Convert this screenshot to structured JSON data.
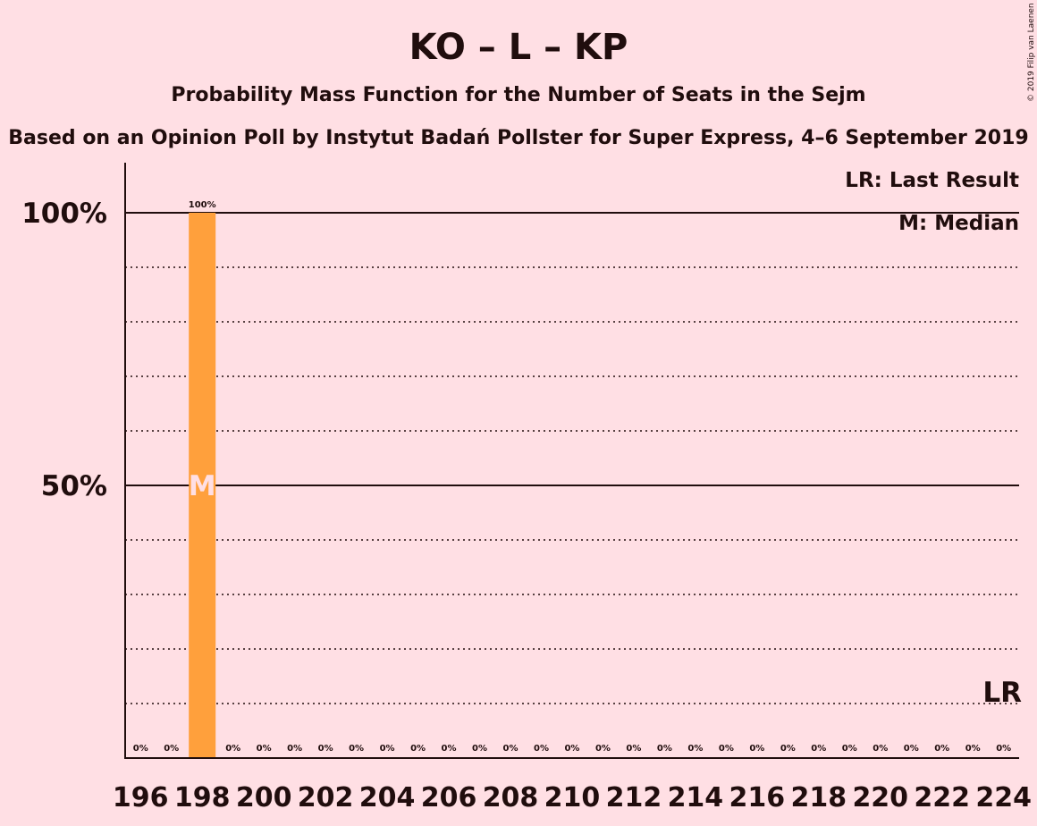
{
  "chart_data": {
    "type": "bar",
    "title": "KO – L – KP",
    "subtitle": "Probability Mass Function for the Number of Seats in the Sejm",
    "subtitle2": "Based on an Opinion Poll by Instytut Badań Pollster for Super Express, 4–6 September 2019",
    "copyright": "© 2019 Filip van Laenen",
    "legend": {
      "last_result": "LR: Last Result",
      "median": "M: Median"
    },
    "lr_marker": "LR",
    "median_marker": "M",
    "median_seat": 198,
    "last_result_seat": 224,
    "x": [
      196,
      197,
      198,
      199,
      200,
      201,
      202,
      203,
      204,
      205,
      206,
      207,
      208,
      209,
      210,
      211,
      212,
      213,
      214,
      215,
      216,
      217,
      218,
      219,
      220,
      221,
      222,
      223,
      224
    ],
    "values": [
      0,
      0,
      100,
      0,
      0,
      0,
      0,
      0,
      0,
      0,
      0,
      0,
      0,
      0,
      0,
      0,
      0,
      0,
      0,
      0,
      0,
      0,
      0,
      0,
      0,
      0,
      0,
      0,
      0
    ],
    "value_labels": [
      "0%",
      "0%",
      "100%",
      "0%",
      "0%",
      "0%",
      "0%",
      "0%",
      "0%",
      "0%",
      "0%",
      "0%",
      "0%",
      "0%",
      "0%",
      "0%",
      "0%",
      "0%",
      "0%",
      "0%",
      "0%",
      "0%",
      "0%",
      "0%",
      "0%",
      "0%",
      "0%",
      "0%",
      "0%"
    ],
    "x_tick_labels": [
      "196",
      "198",
      "200",
      "202",
      "204",
      "206",
      "208",
      "210",
      "212",
      "214",
      "216",
      "218",
      "220",
      "222",
      "224"
    ],
    "y_ticks": [
      50,
      100
    ],
    "y_tick_labels": [
      "50%",
      "100%"
    ],
    "ylim": [
      0,
      109
    ],
    "grid": "dotted every 10%, solid at 50% and 100%",
    "colors": {
      "background": "#ffdfe4",
      "bar": "#ffa03c",
      "text": "#200d0d",
      "median_marker": "#ffdfe4"
    }
  }
}
